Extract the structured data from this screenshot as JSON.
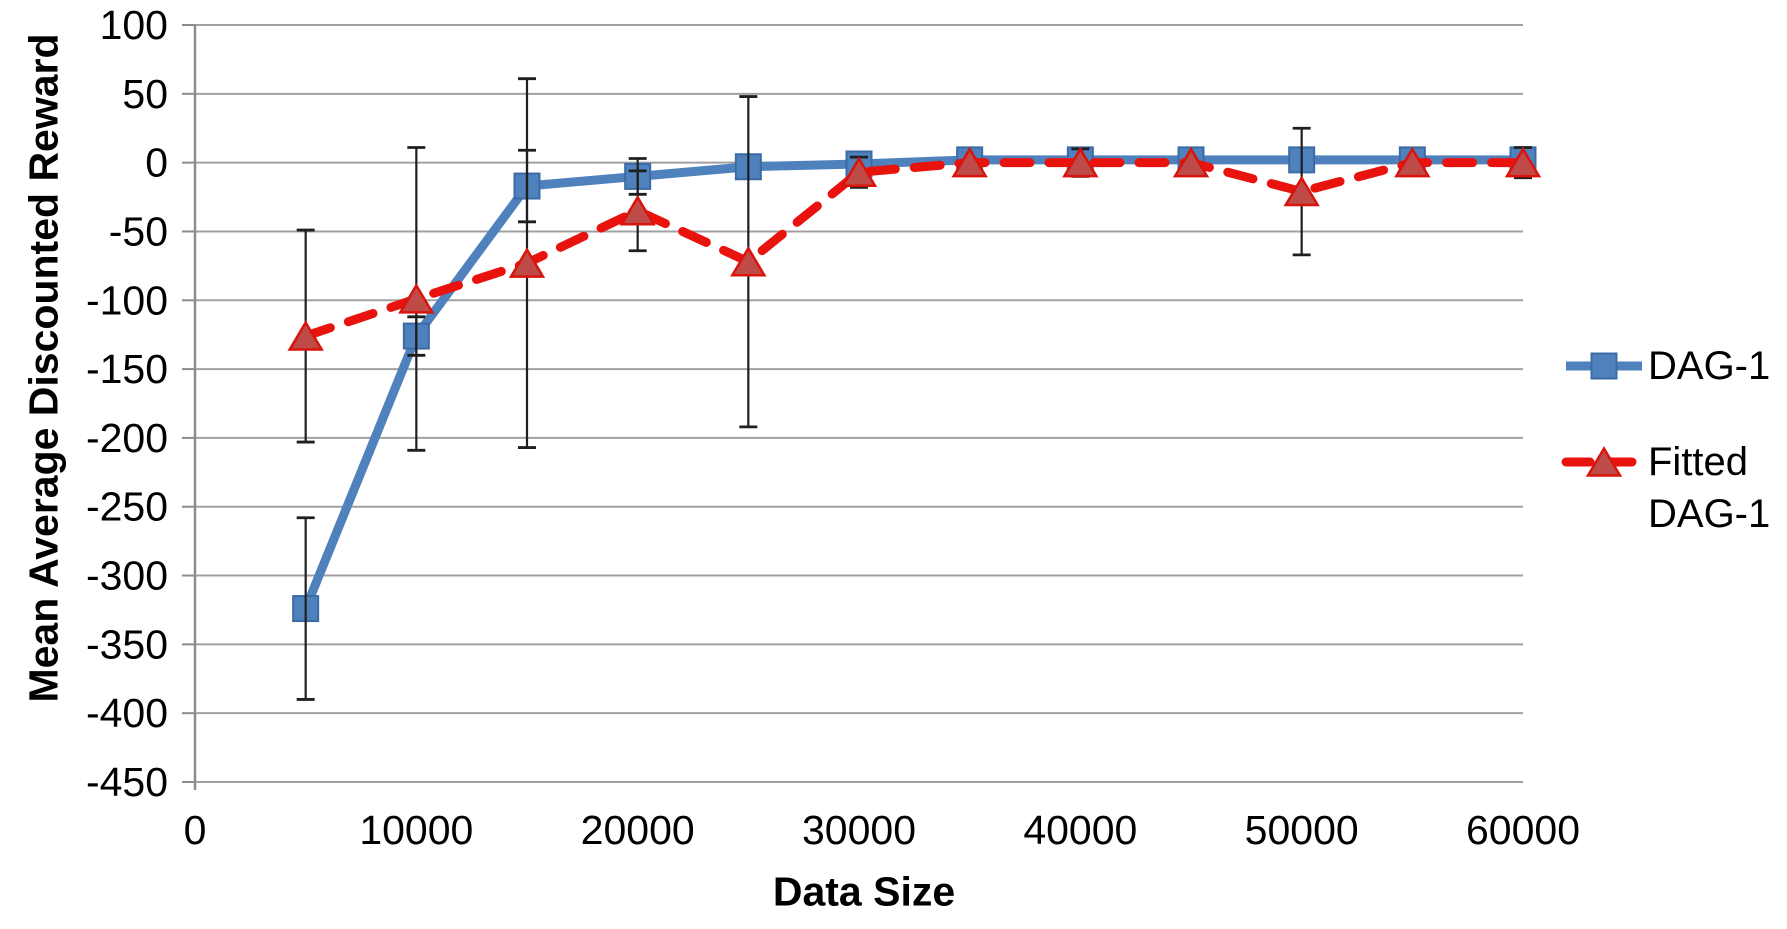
{
  "chart_data": {
    "type": "line",
    "title": "",
    "xlabel": "Data Size",
    "ylabel": "Mean Average Discounted Reward",
    "x": [
      5000,
      10000,
      15000,
      20000,
      25000,
      30000,
      35000,
      40000,
      45000,
      50000,
      55000,
      60000
    ],
    "series": [
      {
        "name": "DAG-1",
        "marker": "square",
        "line_style": "solid",
        "color": "#4F81BD",
        "marker_fill": "#4F81BD",
        "marker_stroke": "#3A6BA5",
        "values": [
          -324,
          -126,
          -17,
          -10,
          -3,
          -1,
          2,
          2,
          2,
          2,
          2,
          2
        ],
        "error": [
          66,
          14,
          26,
          13,
          null,
          null,
          null,
          null,
          null,
          null,
          null,
          null
        ]
      },
      {
        "name": "Fitted DAG-1",
        "marker": "triangle",
        "line_style": "dashed",
        "color": "#E8130C",
        "marker_fill": "#BE4B48",
        "marker_stroke": "#DA140D",
        "values": [
          -126,
          -99,
          -73,
          -35,
          -72,
          -7,
          0,
          0,
          0,
          -21,
          0,
          0
        ],
        "error": [
          77,
          110,
          134,
          29,
          120,
          11,
          null,
          10,
          null,
          46,
          null,
          11
        ]
      }
    ],
    "xlim": [
      0,
      60000
    ],
    "ylim": [
      -450,
      100
    ],
    "x_ticks": [
      0,
      10000,
      20000,
      30000,
      40000,
      50000,
      60000
    ],
    "y_ticks": [
      100,
      50,
      0,
      -50,
      -100,
      -150,
      -200,
      -250,
      -300,
      -350,
      -400,
      -450
    ],
    "grid": "horizontal-only",
    "legend_position": "right-middle",
    "gridline_color": "#A0A0A0",
    "axis_color": "#8C8C8C",
    "error_bar_color": "#1F1F1F",
    "text_color": "#000000",
    "background": "#FFFFFF"
  }
}
